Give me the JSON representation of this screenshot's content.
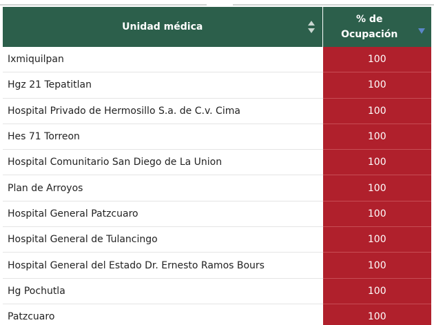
{
  "table": {
    "header": {
      "unit_label": "Unidad médica",
      "occupancy_line1": "% de",
      "occupancy_line2": "Ocupación"
    },
    "rows": [
      {
        "unit": "Ixmiquilpan",
        "occupancy": "100"
      },
      {
        "unit": "Hgz 21 Tepatitlan",
        "occupancy": "100"
      },
      {
        "unit": "Hospital Privado de Hermosillo S.a. de C.v. Cima",
        "occupancy": "100"
      },
      {
        "unit": "Hes 71 Torreon",
        "occupancy": "100"
      },
      {
        "unit": "Hospital Comunitario San Diego de La Union",
        "occupancy": "100"
      },
      {
        "unit": "Plan de Arroyos",
        "occupancy": "100"
      },
      {
        "unit": "Hospital General Patzcuaro",
        "occupancy": "100"
      },
      {
        "unit": "Hospital General de Tulancingo",
        "occupancy": "100"
      },
      {
        "unit": "Hospital General del Estado Dr. Ernesto Ramos Bours",
        "occupancy": "100"
      },
      {
        "unit": "Hg Pochutla",
        "occupancy": "100"
      },
      {
        "unit": "Patzcuaro",
        "occupancy": "100"
      }
    ]
  },
  "colors": {
    "header_bg": "#2c5f4b",
    "occupancy_bg": "#b0202c",
    "sort_active": "#5b86c9"
  },
  "icons": {
    "unit_sort": "sort-both-icon",
    "occupancy_sort": "sort-descending-icon"
  }
}
